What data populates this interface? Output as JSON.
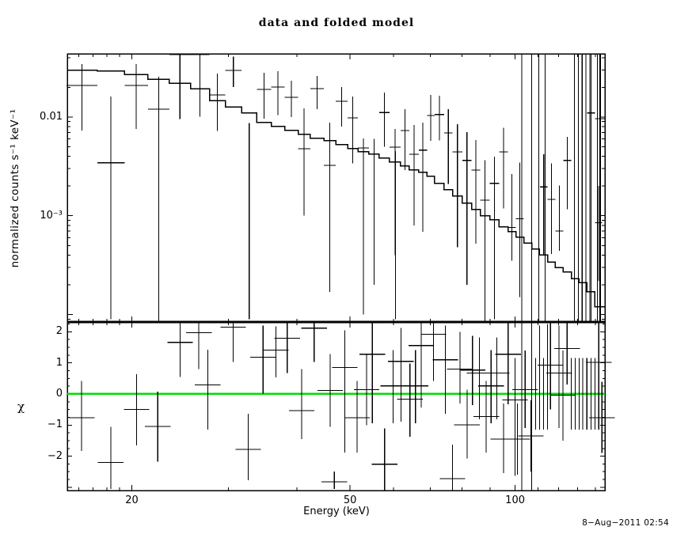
{
  "title": "data and folded model",
  "timestamp": "8−Aug−2011 02:54",
  "colors": {
    "foreground": "#000000",
    "background": "#ffffff",
    "model_line": "#000000",
    "zero_line": "#00dd00"
  },
  "chart_data": [
    {
      "type": "line",
      "title": "data and folded model",
      "ylabel": "normalized counts s⁻¹ keV⁻¹",
      "xlabel": "",
      "xscale": "log",
      "yscale": "log",
      "xlim": [
        15.25,
        145.8
      ],
      "ylim": [
        8.4e-05,
        0.0437
      ],
      "grid": false,
      "legend": "none",
      "yticks": [
        {
          "v": 0.01,
          "label": "0.01"
        },
        {
          "v": 0.001,
          "label": "10⁻³"
        }
      ],
      "yminor": [
        9e-05,
        0.0002,
        0.0003,
        0.0004,
        0.0005,
        0.0006,
        0.0007,
        0.0008,
        0.0009,
        0.002,
        0.003,
        0.004,
        0.005,
        0.006,
        0.007,
        0.008,
        0.009,
        0.02,
        0.03,
        0.04
      ],
      "ymajor": [
        0.0001,
        0.001,
        0.01
      ],
      "model": {
        "edges": [
          15.2,
          17.3,
          19.4,
          21.4,
          23.4,
          25.6,
          27.7,
          29.6,
          31.7,
          33.8,
          35.9,
          38.0,
          40.2,
          42.3,
          44.8,
          47.1,
          49.5,
          51.7,
          54.1,
          56.5,
          59.0,
          61.8,
          64.1,
          66.7,
          69.1,
          71.3,
          74.2,
          76.9,
          80.1,
          83.3,
          86.4,
          89.9,
          93.5,
          97.1,
          100.3,
          103.7,
          107.2,
          110.8,
          114.6,
          118.4,
          122.4,
          126.6,
          130.8,
          135.2,
          139.8,
          145.5
        ],
        "values": [
          0.0297,
          0.0294,
          0.027,
          0.0242,
          0.022,
          0.0194,
          0.0147,
          0.0127,
          0.011,
          0.00879,
          0.00802,
          0.00731,
          0.00667,
          0.00608,
          0.00575,
          0.00525,
          0.00479,
          0.00445,
          0.00421,
          0.00384,
          0.0035,
          0.00319,
          0.00291,
          0.00275,
          0.00251,
          0.00213,
          0.00184,
          0.00158,
          0.00134,
          0.00116,
          0.001,
          0.00091,
          0.00077,
          0.00069,
          0.00061,
          0.00053,
          0.00046,
          0.0004,
          0.00034,
          0.0003,
          0.00027,
          0.00023,
          0.00021,
          0.00017,
          0.00012
        ]
      },
      "points": [
        [
          15.2,
          17.3,
          0.0209,
          0.0073,
          0.0344
        ],
        [
          17.3,
          19.4,
          0.00344,
          9e-05,
          0.0162
        ],
        [
          19.4,
          21.4,
          0.0209,
          0.0076,
          0.0344
        ],
        [
          21.4,
          23.4,
          0.012,
          8e-05,
          0.0256
        ],
        [
          23.4,
          25.6,
          0.0429,
          0.0095,
          0.06
        ],
        [
          25.6,
          27.7,
          0.0429,
          0.0101,
          0.06
        ],
        [
          27.7,
          29.6,
          0.0168,
          0.0072,
          0.0276
        ],
        [
          29.6,
          31.7,
          0.0297,
          0.0201,
          0.0408
        ],
        [
          31.7,
          33.8,
          null,
          9e-05,
          0.00867
        ],
        [
          33.8,
          35.9,
          0.019,
          0.0096,
          0.0281
        ],
        [
          35.9,
          38.0,
          0.0201,
          0.0105,
          0.0291
        ],
        [
          38.0,
          40.2,
          0.0158,
          0.01,
          0.0233
        ],
        [
          40.2,
          42.3,
          0.00479,
          0.001,
          0.0122
        ],
        [
          42.3,
          44.8,
          0.0194,
          0.012,
          0.0261
        ],
        [
          44.8,
          47.1,
          0.00325,
          0.00017,
          0.00879
        ],
        [
          47.1,
          49.5,
          0.0144,
          0.008,
          0.0201
        ],
        [
          49.5,
          51.7,
          0.00981,
          0.0034,
          0.0162
        ],
        [
          51.7,
          54.1,
          0.00488,
          0.0001,
          0.00608
        ],
        [
          54.1,
          56.5,
          0.0042,
          0.0002,
          0.006
        ],
        [
          56.5,
          59.0,
          0.0111,
          0.005,
          0.0177
        ],
        [
          59.0,
          61.8,
          0.00497,
          0.0004,
          0.00758
        ],
        [
          61.8,
          64.1,
          0.0073,
          0.0029,
          0.012
        ],
        [
          64.1,
          66.7,
          0.0042,
          0.0008,
          0.0083
        ],
        [
          66.7,
          69.1,
          0.00462,
          0.00069,
          0.00879
        ],
        [
          69.1,
          71.3,
          0.0104,
          0.00575,
          0.0168
        ],
        [
          71.3,
          74.2,
          0.0106,
          0.0058,
          0.0165
        ],
        [
          74.2,
          76.9,
          0.0069,
          0.0021,
          0.012
        ],
        [
          76.9,
          80.1,
          0.00445,
          0.00048,
          0.00847
        ],
        [
          80.1,
          83.3,
          0.00364,
          0.0002,
          0.00705
        ],
        [
          83.3,
          86.4,
          0.00291,
          0.00052,
          0.00585
        ],
        [
          86.4,
          89.9,
          0.00144,
          8e-05,
          0.00364
        ],
        [
          89.9,
          93.5,
          0.00213,
          9e-05,
          0.00398
        ],
        [
          93.5,
          97.1,
          0.00445,
          0.00119,
          0.00776
        ],
        [
          97.1,
          100.3,
          0.00076,
          0.00035,
          0.00265
        ],
        [
          100.3,
          103.7,
          0.00093,
          0.00015,
          0.00346
        ],
        [
          111.0,
          114.6,
          0.00196,
          0.0004,
          0.00421
        ],
        [
          114.6,
          118.4,
          0.00147,
          0.00041,
          0.00338
        ],
        [
          118.4,
          122.4,
          0.0007,
          0.00044,
          0.00202
        ],
        [
          122.4,
          126.6,
          0.00364,
          0.00116,
          0.00631
        ],
        [
          135.2,
          139.8,
          0.011,
          1e-05,
          0.09
        ],
        [
          139.8,
          145.5,
          0.0096,
          1e-05,
          0.09
        ],
        [
          139.8,
          144.0,
          0.00085,
          0.00022,
          0.002
        ]
      ],
      "spikes": [
        [
          60.5,
          9e-05,
          0.0045
        ],
        [
          102.9,
          1e-05,
          0.09
        ],
        [
          107.2,
          1e-05,
          0.09
        ],
        [
          110.5,
          1e-05,
          0.09
        ],
        [
          113.4,
          1e-05,
          0.09
        ],
        [
          128.3,
          1e-05,
          0.09
        ],
        [
          130.4,
          1e-05,
          0.09
        ],
        [
          132.5,
          1e-05,
          0.09
        ],
        [
          134.7,
          1e-05,
          0.09
        ],
        [
          136.9,
          1e-05,
          0.09
        ],
        [
          141.2,
          1e-05,
          0.09
        ],
        [
          143.1,
          1e-05,
          0.09
        ]
      ]
    },
    {
      "type": "scatter",
      "ylabel": "χ",
      "xlabel": "Energy (keV)",
      "xscale": "log",
      "yscale": "linear",
      "xlim": [
        15.25,
        145.8
      ],
      "ylim": [
        -3.105,
        2.316
      ],
      "zero_line": 0,
      "xticks": [
        {
          "v": 20,
          "label": "20"
        },
        {
          "v": 50,
          "label": "50"
        },
        {
          "v": 100,
          "label": "100"
        }
      ],
      "xminor": [
        16,
        17,
        18,
        19,
        30,
        40,
        60,
        70,
        80,
        90,
        110,
        120,
        130,
        140
      ],
      "yticks": [
        {
          "v": 2,
          "label": "2"
        },
        {
          "v": 1,
          "label": "1"
        },
        {
          "v": 0,
          "label": "0"
        },
        {
          "v": -1,
          "label": "−1"
        },
        {
          "v": -2,
          "label": "−2"
        }
      ],
      "ymajor": [
        -3,
        -2,
        -1,
        0,
        1,
        2
      ],
      "yminor_step": 0.25,
      "points": [
        [
          16.2,
          -0.76,
          -1.83,
          0.42
        ],
        [
          18.3,
          -2.2,
          -3.05,
          -1.06
        ],
        [
          20.4,
          -0.5,
          -1.66,
          0.64
        ],
        [
          22.3,
          -1.04,
          -2.17,
          0.08
        ],
        [
          24.5,
          1.66,
          0.55,
          2.4
        ],
        [
          26.5,
          1.97,
          0.8,
          2.4
        ],
        [
          27.5,
          0.29,
          -1.14,
          1.43
        ],
        [
          30.6,
          2.15,
          1.03,
          2.4
        ],
        [
          32.6,
          -1.78,
          -2.77,
          -0.63
        ],
        [
          34.7,
          1.18,
          0.01,
          2.2
        ],
        [
          36.6,
          1.41,
          0.54,
          2.18
        ],
        [
          38.4,
          1.79,
          0.67,
          2.4
        ],
        [
          40.8,
          -0.53,
          -1.45,
          0.8
        ],
        [
          43.0,
          2.12,
          1.03,
          2.4
        ],
        [
          46.0,
          0.11,
          -1.06,
          1.28
        ],
        [
          46.8,
          -2.82,
          -3.05,
          -2.5
        ],
        [
          48.9,
          0.85,
          -1.88,
          2.05
        ],
        [
          51.5,
          -0.76,
          -1.88,
          0.42
        ],
        [
          53.6,
          0.14,
          -1.01,
          1.28
        ],
        [
          54.9,
          1.28,
          -0.94,
          2.4
        ],
        [
          57.8,
          -2.26,
          -3.1,
          -1.11
        ],
        [
          59.9,
          0.26,
          -0.94,
          1.41
        ],
        [
          61.9,
          1.05,
          -0.89,
          2.12
        ],
        [
          64.3,
          -0.17,
          -1.37,
          0.98
        ],
        [
          65.8,
          0.26,
          -0.94,
          1.41
        ],
        [
          67.4,
          1.56,
          -0.43,
          2.4
        ],
        [
          71.0,
          1.92,
          0.42,
          2.4
        ],
        [
          74.6,
          1.1,
          -0.63,
          2.2
        ],
        [
          76.9,
          -2.72,
          -3.1,
          -1.63
        ],
        [
          79.3,
          0.8,
          -0.3,
          2.0
        ],
        [
          81.7,
          -0.99,
          -2.08,
          0.14
        ],
        [
          83.6,
          0.77,
          -0.35,
          1.87
        ],
        [
          86.1,
          0.67,
          -0.82,
          1.82
        ],
        [
          88.6,
          -0.73,
          -1.88,
          0.42
        ],
        [
          90.4,
          0.26,
          -0.94,
          1.41
        ],
        [
          92.6,
          0.67,
          -0.82,
          1.82
        ],
        [
          95.2,
          -1.45,
          -2.54,
          -0.3
        ],
        [
          97.1,
          1.28,
          -0.33,
          2.4
        ],
        [
          100.0,
          -0.19,
          -2.64,
          1.16
        ],
        [
          101.0,
          -1.45,
          -2.6,
          -0.3
        ],
        [
          104.3,
          0.14,
          -1.1,
          1.4
        ],
        [
          106.8,
          -1.35,
          -2.5,
          -0.2
        ],
        [
          116.0,
          0.93,
          -0.5,
          2.3
        ],
        [
          120.3,
          0.67,
          -1.1,
          2.2
        ],
        [
          122.3,
          -0.04,
          -1.5,
          1.4
        ],
        [
          124.4,
          1.46,
          0.3,
          2.4
        ],
        [
          142.1,
          1.02,
          -1.14,
          2.3
        ],
        [
          144.0,
          -0.76,
          -1.9,
          0.4
        ]
      ],
      "spikes": [
        [
          102.9,
          -3.15,
          2.35
        ],
        [
          107.2,
          -3.15,
          2.35
        ],
        [
          109.0,
          -1.14,
          1.16
        ],
        [
          110.8,
          -1.14,
          2.2
        ],
        [
          112.7,
          -1.14,
          1.16
        ],
        [
          114.6,
          -1.14,
          2.25
        ],
        [
          126.6,
          -1.14,
          1.16
        ],
        [
          128.7,
          -1.14,
          1.16
        ],
        [
          130.8,
          -1.14,
          1.16
        ],
        [
          132.9,
          -1.14,
          1.16
        ],
        [
          135.2,
          -1.14,
          1.16
        ],
        [
          137.5,
          -1.14,
          1.16
        ],
        [
          139.8,
          -1.14,
          1.16
        ]
      ]
    }
  ]
}
